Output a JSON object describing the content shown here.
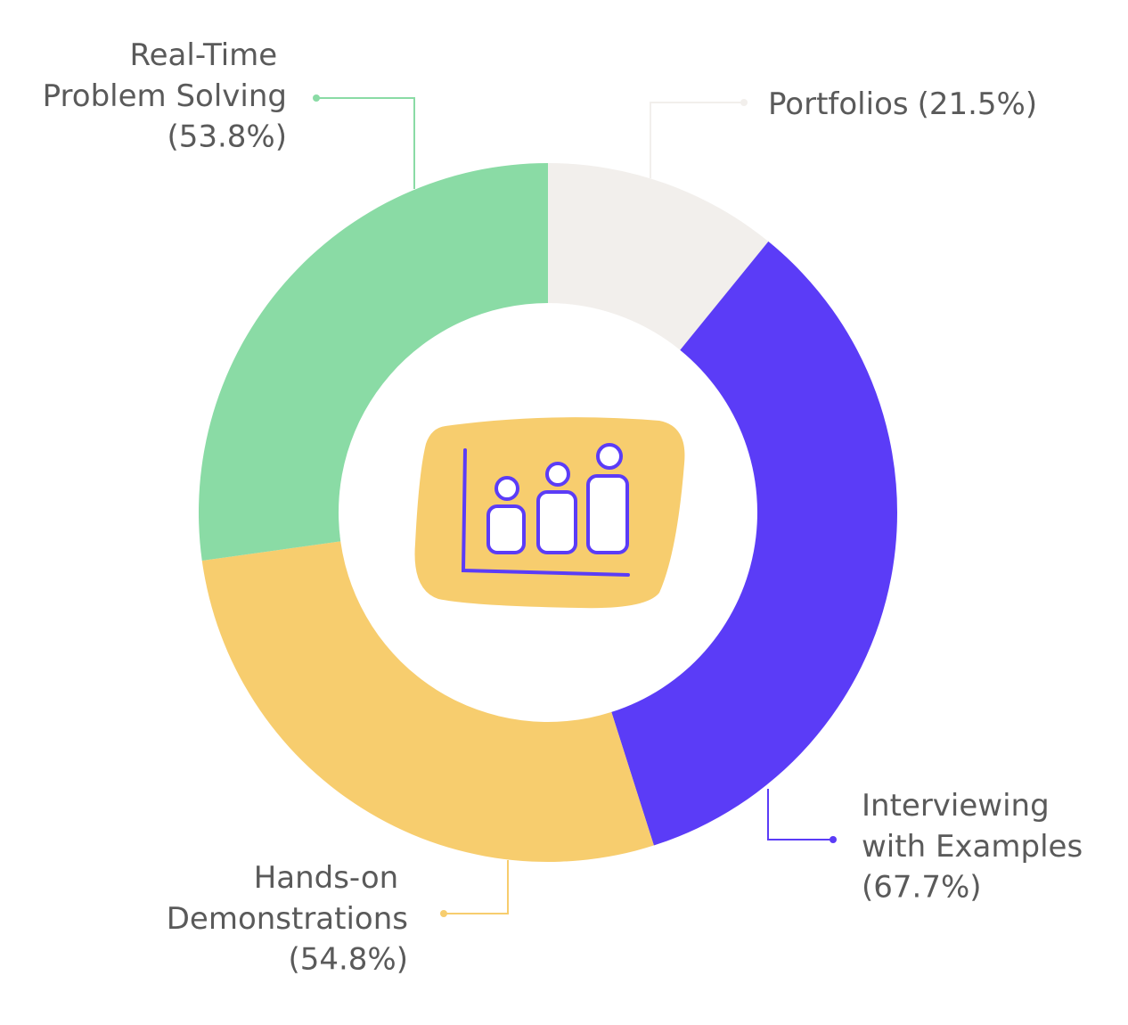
{
  "chart_data": {
    "type": "donut",
    "categories": [
      "Portfolios",
      "Interviewing with Examples",
      "Hands-on Demonstrations",
      "Real-Time Problem Solving"
    ],
    "values": [
      21.5,
      67.7,
      54.8,
      53.8
    ],
    "value_labels": [
      "(21.5%)",
      "(67.7%)",
      "(54.8%)",
      "(53.8%)"
    ],
    "colors": [
      "#f2efec",
      "#5b3cf7",
      "#f7cd6e",
      "#8adba5"
    ]
  }
}
